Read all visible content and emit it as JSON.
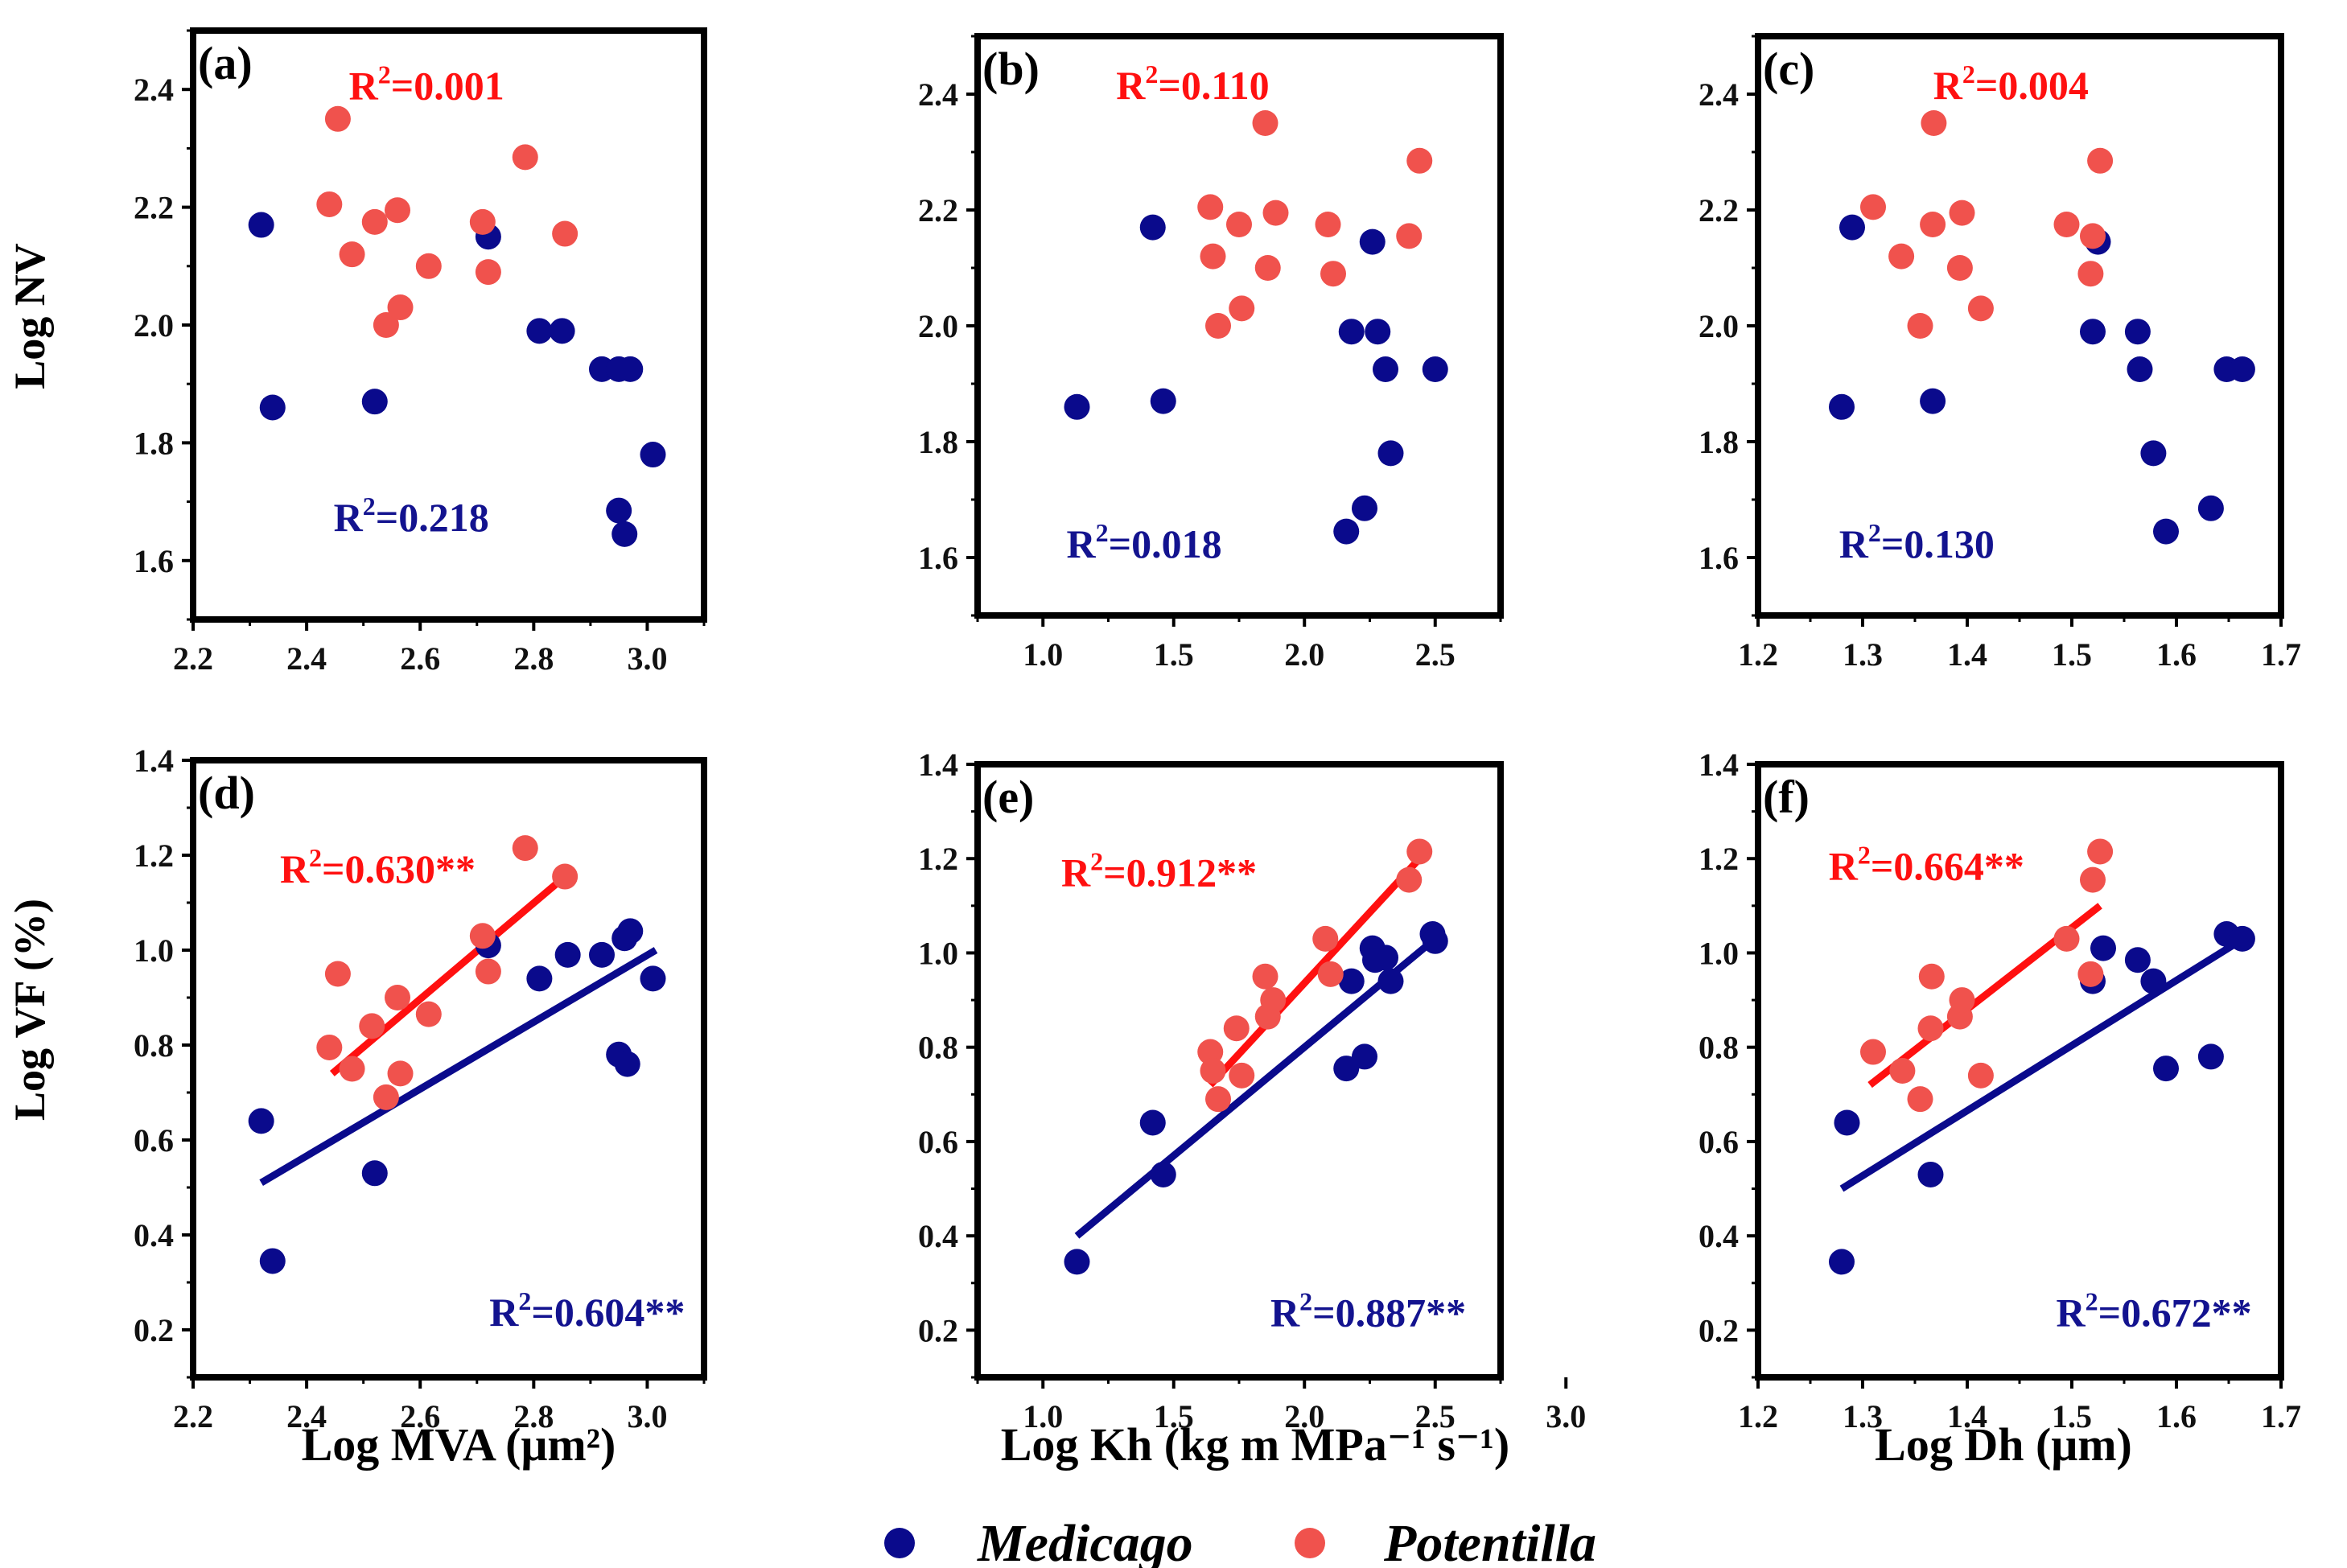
{
  "colors": {
    "medicago": "#0a0a8c",
    "potentilla": "#f0524d",
    "potentilla_line": "#ff1010",
    "r2_potentilla": "#ff1010",
    "r2_medicago": "#13138f"
  },
  "axes": {
    "ylabel_top": "Log NV",
    "ylabel_bottom": "Log VF (%)",
    "xlabel_left": "Log MVA (μm²)",
    "xlabel_mid": "Log Kh (kg m MPa⁻¹ s⁻¹)",
    "xlabel_right": "Log Dh (μm)"
  },
  "legend": {
    "medicago": "Medicago",
    "potentilla": "Potentilla"
  },
  "chart_data": [
    {
      "type": "scatter",
      "panel": "(a)",
      "xlabel": "Log MVA (μm²)",
      "ylabel": "Log NV",
      "xlim": [
        2.2,
        3.1
      ],
      "ylim": [
        1.5,
        2.5
      ],
      "xticks": [
        "2.2",
        "2.4",
        "2.6",
        "2.8",
        "3.0"
      ],
      "yticks": [
        "1.6",
        "1.8",
        "2.0",
        "2.2",
        "2.4"
      ],
      "r2_potentilla": "R²=0.001",
      "r2_medicago": "R²=0.218",
      "series": [
        {
          "name": "Medicago",
          "x": [
            2.32,
            2.34,
            2.52,
            2.72,
            2.81,
            2.85,
            2.92,
            2.95,
            2.97,
            2.95,
            2.96,
            3.01
          ],
          "y": [
            2.17,
            1.86,
            1.87,
            2.15,
            1.99,
            1.99,
            1.925,
            1.925,
            1.925,
            1.685,
            1.645,
            1.78
          ]
        },
        {
          "name": "Potentilla",
          "x": [
            2.44,
            2.455,
            2.48,
            2.52,
            2.54,
            2.56,
            2.565,
            2.615,
            2.71,
            2.72,
            2.785,
            2.855
          ],
          "y": [
            2.205,
            2.35,
            2.12,
            2.175,
            2.0,
            2.195,
            2.03,
            2.1,
            2.175,
            2.09,
            2.285,
            2.155
          ]
        }
      ],
      "fit_lines": []
    },
    {
      "type": "scatter",
      "panel": "(b)",
      "xlabel": "Log Kh (kg m MPa⁻¹ s⁻¹)",
      "ylabel": "Log NV",
      "xlim": [
        0.75,
        2.75
      ],
      "ylim": [
        1.5,
        2.5
      ],
      "xticks": [
        "1.0",
        "1.5",
        "2.0",
        "2.5"
      ],
      "yticks": [
        "1.6",
        "1.8",
        "2.0",
        "2.2",
        "2.4"
      ],
      "r2_potentilla": "R²=0.110",
      "r2_medicago": "R²=0.018",
      "series": [
        {
          "name": "Medicago",
          "x": [
            1.13,
            1.42,
            1.46,
            2.16,
            2.18,
            2.23,
            2.26,
            2.28,
            2.31,
            2.33,
            2.5
          ],
          "y": [
            1.86,
            2.17,
            1.87,
            1.645,
            1.99,
            1.685,
            2.145,
            1.99,
            1.925,
            1.78,
            1.925
          ]
        },
        {
          "name": "Potentilla",
          "x": [
            1.64,
            1.65,
            1.67,
            1.75,
            1.76,
            1.85,
            1.86,
            1.89,
            2.09,
            2.11,
            2.4,
            2.44
          ],
          "y": [
            2.205,
            2.12,
            2.0,
            2.175,
            2.03,
            2.35,
            2.1,
            2.195,
            2.175,
            2.09,
            2.155,
            2.285
          ]
        }
      ],
      "fit_lines": []
    },
    {
      "type": "scatter",
      "panel": "(c)",
      "xlabel": "Log Dh (μm)",
      "ylabel": "Log NV",
      "xlim": [
        1.2,
        1.7
      ],
      "ylim": [
        1.5,
        2.5
      ],
      "xticks": [
        "1.2",
        "1.3",
        "1.4",
        "1.5",
        "1.6",
        "1.7"
      ],
      "yticks": [
        "1.6",
        "1.8",
        "2.0",
        "2.2",
        "2.4"
      ],
      "r2_potentilla": "R²=0.004",
      "r2_medicago": "R²=0.130",
      "series": [
        {
          "name": "Medicago",
          "x": [
            1.28,
            1.29,
            1.367,
            1.525,
            1.52,
            1.563,
            1.565,
            1.578,
            1.59,
            1.633,
            1.648,
            1.663
          ],
          "y": [
            1.86,
            2.17,
            1.87,
            2.145,
            1.99,
            1.99,
            1.925,
            1.78,
            1.645,
            1.685,
            1.925,
            1.925
          ]
        },
        {
          "name": "Potentilla",
          "x": [
            1.31,
            1.337,
            1.355,
            1.367,
            1.368,
            1.393,
            1.395,
            1.413,
            1.495,
            1.518,
            1.52,
            1.527
          ],
          "y": [
            2.205,
            2.12,
            2.0,
            2.175,
            2.35,
            2.1,
            2.195,
            2.03,
            2.175,
            2.09,
            2.155,
            2.285
          ]
        }
      ],
      "fit_lines": []
    },
    {
      "type": "scatter",
      "panel": "(d)",
      "xlabel": "Log MVA (μm²)",
      "ylabel": "Log VF (%)",
      "xlim": [
        2.2,
        3.1
      ],
      "ylim": [
        0.1,
        1.4
      ],
      "xticks": [
        "2.2",
        "2.4",
        "2.6",
        "2.8",
        "3.0"
      ],
      "yticks": [
        "0.2",
        "0.4",
        "0.6",
        "0.8",
        "1.0",
        "1.2",
        "1.4"
      ],
      "r2_potentilla": "R²=0.630**",
      "r2_medicago": "R²=0.604**",
      "series": [
        {
          "name": "Medicago",
          "x": [
            2.32,
            2.34,
            2.52,
            2.72,
            2.81,
            2.86,
            2.92,
            2.95,
            2.965,
            2.96,
            2.97,
            3.01
          ],
          "y": [
            0.64,
            0.345,
            0.53,
            1.01,
            0.94,
            0.99,
            0.99,
            0.78,
            0.76,
            1.025,
            1.04,
            0.94
          ]
        },
        {
          "name": "Potentilla",
          "x": [
            2.44,
            2.455,
            2.48,
            2.515,
            2.54,
            2.56,
            2.565,
            2.615,
            2.71,
            2.72,
            2.785,
            2.855
          ],
          "y": [
            0.795,
            0.95,
            0.75,
            0.84,
            0.69,
            0.9,
            0.74,
            0.865,
            1.03,
            0.955,
            1.215,
            1.155
          ]
        }
      ],
      "fit_lines": [
        {
          "name": "Potentilla",
          "x": [
            2.445,
            2.855
          ],
          "y": [
            0.74,
            1.155
          ]
        },
        {
          "name": "Medicago",
          "x": [
            2.32,
            3.015
          ],
          "y": [
            0.51,
            1.0
          ]
        }
      ]
    },
    {
      "type": "scatter",
      "panel": "(e)",
      "xlabel": "Log Kh (kg m MPa⁻¹ s⁻¹)",
      "ylabel": "Log VF (%)",
      "xlim": [
        0.75,
        2.75
      ],
      "ylim": [
        0.1,
        1.4
      ],
      "xticks": [
        "1.0",
        "1.5",
        "2.0",
        "2.5",
        "3.0"
      ],
      "yticks": [
        "0.2",
        "0.4",
        "0.6",
        "0.8",
        "1.0",
        "1.2",
        "1.4"
      ],
      "r2_potentilla": "R²=0.912**",
      "r2_medicago": "R²=0.887**",
      "series": [
        {
          "name": "Medicago",
          "x": [
            1.13,
            1.42,
            1.46,
            2.16,
            2.18,
            2.23,
            2.26,
            2.27,
            2.31,
            2.33,
            2.49,
            2.5
          ],
          "y": [
            0.345,
            0.64,
            0.53,
            0.755,
            0.94,
            0.78,
            1.01,
            0.985,
            0.99,
            0.94,
            1.04,
            1.025
          ]
        },
        {
          "name": "Potentilla",
          "x": [
            1.64,
            1.65,
            1.67,
            1.74,
            1.76,
            1.85,
            1.86,
            1.88,
            2.08,
            2.1,
            2.4,
            2.44
          ],
          "y": [
            0.79,
            0.75,
            0.69,
            0.84,
            0.74,
            0.95,
            0.865,
            0.9,
            1.03,
            0.955,
            1.155,
            1.215
          ]
        }
      ],
      "fit_lines": [
        {
          "name": "Potentilla",
          "x": [
            1.64,
            2.44
          ],
          "y": [
            0.72,
            1.2
          ]
        },
        {
          "name": "Medicago",
          "x": [
            1.13,
            2.5
          ],
          "y": [
            0.4,
            1.03
          ]
        }
      ]
    },
    {
      "type": "scatter",
      "panel": "(f)",
      "xlabel": "Log Dh (μm)",
      "ylabel": "Log VF (%)",
      "xlim": [
        1.2,
        1.7
      ],
      "ylim": [
        0.1,
        1.4
      ],
      "xticks": [
        "1.2",
        "1.3",
        "1.4",
        "1.5",
        "1.6",
        "1.7"
      ],
      "yticks": [
        "0.2",
        "0.4",
        "0.6",
        "0.8",
        "1.0",
        "1.2",
        "1.4"
      ],
      "r2_potentilla": "R²=0.664**",
      "r2_medicago": "R²=0.672**",
      "series": [
        {
          "name": "Medicago",
          "x": [
            1.28,
            1.285,
            1.365,
            1.52,
            1.53,
            1.563,
            1.578,
            1.59,
            1.633,
            1.648,
            1.663
          ],
          "y": [
            0.345,
            0.64,
            0.53,
            0.94,
            1.01,
            0.985,
            0.94,
            0.755,
            0.78,
            1.04,
            1.03
          ]
        },
        {
          "name": "Potentilla",
          "x": [
            1.31,
            1.338,
            1.355,
            1.365,
            1.366,
            1.393,
            1.395,
            1.413,
            1.495,
            1.518,
            1.52,
            1.527
          ],
          "y": [
            0.79,
            0.75,
            0.69,
            0.84,
            0.95,
            0.865,
            0.9,
            0.74,
            1.03,
            0.955,
            1.155,
            1.215
          ]
        }
      ],
      "fit_lines": [
        {
          "name": "Potentilla",
          "x": [
            1.307,
            1.527
          ],
          "y": [
            0.72,
            1.1
          ]
        },
        {
          "name": "Medicago",
          "x": [
            1.28,
            1.664
          ],
          "y": [
            0.5,
            1.03
          ]
        }
      ]
    }
  ]
}
